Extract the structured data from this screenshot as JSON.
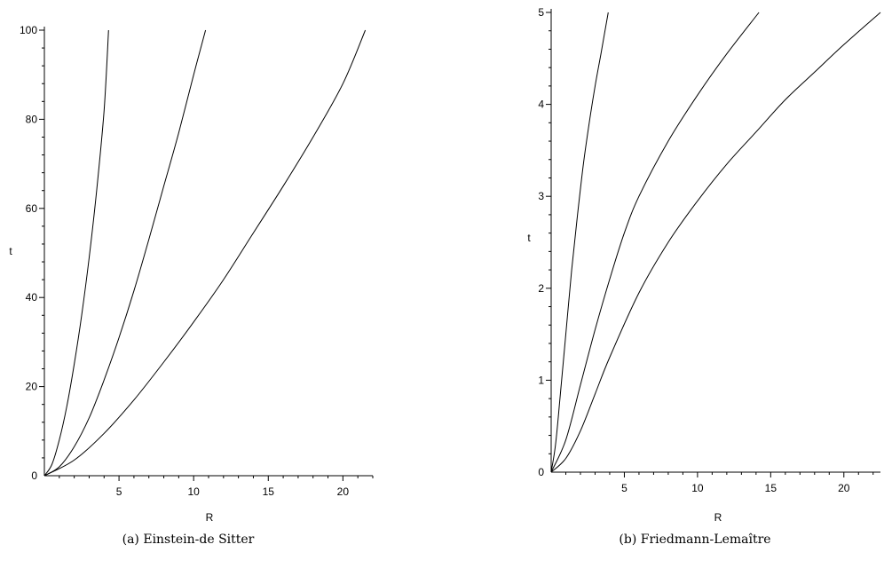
{
  "chart_data": [
    {
      "type": "line",
      "caption": "(a) Einstein-de Sitter",
      "xlabel": "R",
      "ylabel": "t",
      "xlim": [
        0,
        22
      ],
      "ylim": [
        0,
        100
      ],
      "xticks": [
        5,
        10,
        15,
        20
      ],
      "yticks": [
        0,
        20,
        40,
        60,
        80,
        100
      ],
      "grid": false,
      "series": [
        {
          "x": [
            0,
            0.5,
            1,
            1.5,
            2,
            2.5,
            3,
            3.5,
            4,
            4.3
          ],
          "y": [
            0,
            2.5,
            8,
            15.5,
            25,
            36,
            49,
            64,
            82,
            100
          ]
        },
        {
          "x": [
            0,
            1,
            2,
            3,
            4,
            5,
            6,
            7,
            8,
            9,
            10,
            10.8
          ],
          "y": [
            0,
            2,
            6.5,
            13,
            21.5,
            31,
            41.5,
            53,
            65,
            77,
            90,
            100
          ]
        },
        {
          "x": [
            0,
            2,
            4,
            6,
            8,
            10,
            12,
            14,
            16,
            18,
            20,
            21.5
          ],
          "y": [
            0,
            3.5,
            9.5,
            17,
            25.5,
            34.5,
            44,
            54.5,
            65,
            76,
            88,
            100
          ]
        }
      ]
    },
    {
      "type": "line",
      "caption": "(b) Friedmann-Lemaître",
      "xlabel": "R",
      "ylabel": "t",
      "xlim": [
        0,
        22.5
      ],
      "ylim": [
        0,
        5
      ],
      "xticks": [
        5,
        10,
        15,
        20
      ],
      "yticks": [
        0,
        1,
        2,
        3,
        4,
        5
      ],
      "grid": false,
      "series": [
        {
          "x": [
            0,
            0.3,
            0.6,
            1.0,
            1.4,
            1.8,
            2.2,
            2.6,
            3.0,
            3.4,
            3.9
          ],
          "y": [
            0,
            0.3,
            0.8,
            1.5,
            2.2,
            2.8,
            3.35,
            3.8,
            4.2,
            4.55,
            5.0
          ]
        },
        {
          "x": [
            0,
            1,
            2,
            3,
            4,
            5,
            6,
            8,
            10,
            12,
            14.2
          ],
          "y": [
            0,
            0.35,
            0.95,
            1.55,
            2.1,
            2.6,
            3.0,
            3.6,
            4.1,
            4.55,
            5.0
          ]
        },
        {
          "x": [
            0,
            1,
            2,
            3,
            4,
            6,
            8,
            10,
            12,
            14,
            16,
            18,
            20,
            22.5
          ],
          "y": [
            0,
            0.15,
            0.45,
            0.85,
            1.25,
            1.95,
            2.5,
            2.95,
            3.35,
            3.7,
            4.05,
            4.35,
            4.65,
            5.0
          ]
        }
      ]
    }
  ]
}
